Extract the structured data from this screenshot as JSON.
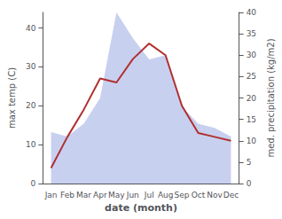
{
  "chart_data": {
    "type": "line",
    "xlabel": "date (month)",
    "ylabel": "max temp (C)",
    "y2label": "med. precipitation (kg/m2)",
    "categories": [
      "Jan",
      "Feb",
      "Mar",
      "Apr",
      "May",
      "Jun",
      "Jul",
      "Aug",
      "Sep",
      "Oct",
      "Nov",
      "Dec"
    ],
    "series": [
      {
        "type": "area",
        "axis": "y2",
        "color": "#c8d0f0",
        "values": [
          12,
          11,
          14,
          20,
          40,
          34,
          29,
          30,
          18,
          14,
          13,
          11
        ]
      },
      {
        "type": "line",
        "color": "#b03030",
        "values": [
          4,
          12,
          19,
          27,
          26,
          32,
          36,
          33,
          20,
          13,
          12,
          11
        ]
      }
    ],
    "ylim": [
      0,
      44
    ],
    "yticks": [
      0,
      10,
      20,
      30,
      40
    ],
    "y2lim": [
      0,
      40
    ],
    "y2ticks": [
      0,
      5,
      10,
      15,
      20,
      25,
      30,
      35,
      40
    ],
    "grid": false
  }
}
